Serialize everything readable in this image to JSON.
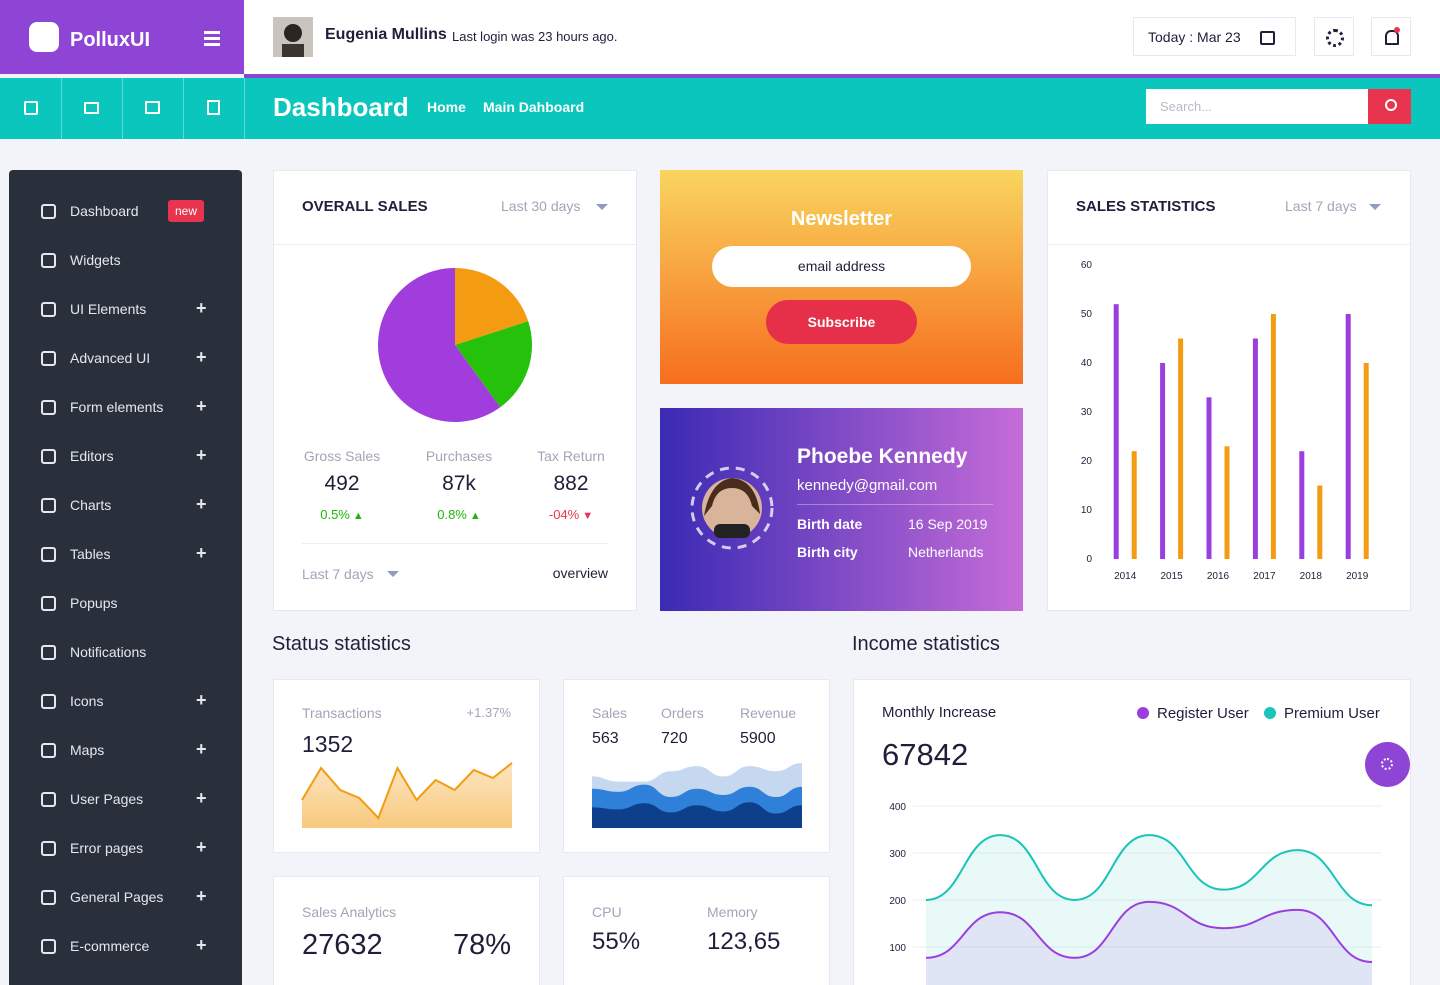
{
  "brand": "PolluxUI",
  "user": {
    "name": "Eugenia Mullins",
    "status": "Last login was 23 hours ago."
  },
  "date": "Today : Mar 23",
  "page_title": "Dashboard",
  "breadcrumb": [
    "Home",
    "Main Dahboard"
  ],
  "search_placeholder": "Search...",
  "sidebar": [
    {
      "label": "Dashboard",
      "badge": "new"
    },
    {
      "label": "Widgets"
    },
    {
      "label": "UI Elements",
      "expandable": true
    },
    {
      "label": "Advanced UI",
      "expandable": true
    },
    {
      "label": "Form elements",
      "expandable": true
    },
    {
      "label": "Editors",
      "expandable": true
    },
    {
      "label": "Charts",
      "expandable": true
    },
    {
      "label": "Tables",
      "expandable": true
    },
    {
      "label": "Popups"
    },
    {
      "label": "Notifications"
    },
    {
      "label": "Icons",
      "expandable": true
    },
    {
      "label": "Maps",
      "expandable": true
    },
    {
      "label": "User Pages",
      "expandable": true
    },
    {
      "label": "Error pages",
      "expandable": true
    },
    {
      "label": "General Pages",
      "expandable": true
    },
    {
      "label": "E-commerce",
      "expandable": true
    }
  ],
  "overall_sales": {
    "title": "OVERALL SALES",
    "period": "Last 30 days",
    "stats": [
      {
        "label": "Gross Sales",
        "value": 492,
        "change": "0.5%",
        "trend": "up"
      },
      {
        "label": "Purchases",
        "value": "87k",
        "change": "0.8%",
        "trend": "up"
      },
      {
        "label": "Tax Return",
        "value": 882,
        "change": "-04%",
        "trend": "down"
      }
    ],
    "footer_period": "Last 7 days",
    "footer_link": "overview"
  },
  "newsletter": {
    "title": "Newsletter",
    "placeholder": "email address",
    "button": "Subscribe"
  },
  "profile": {
    "name": "Phoebe Kennedy",
    "email": "kennedy@gmail.com",
    "details": [
      {
        "label": "Birth date",
        "value": "16 Sep 2019"
      },
      {
        "label": "Birth city",
        "value": "Netherlands"
      }
    ]
  },
  "sales_statistics": {
    "title": "SALES STATISTICS",
    "period": "Last 7 days"
  },
  "status_title": "Status statistics",
  "transactions": {
    "label": "Transactions",
    "change": "+1.37%",
    "value": 1352
  },
  "orders_card": [
    {
      "label": "Sales",
      "value": 563
    },
    {
      "label": "Orders",
      "value": 720
    },
    {
      "label": "Revenue",
      "value": 5900
    }
  ],
  "sales_analytics": {
    "label": "Sales Analytics",
    "value": 27632,
    "percent": "78%"
  },
  "system": [
    {
      "label": "CPU",
      "value": "55%"
    },
    {
      "label": "Memory",
      "value": "123,65"
    }
  ],
  "income_title": "Income statistics",
  "income": {
    "label": "Monthly Increase",
    "value": 67842
  },
  "chart_data": [
    {
      "type": "pie",
      "values": [
        20,
        20,
        60
      ],
      "colors": [
        "#f39c12",
        "#26c10a",
        "#a03ddc"
      ]
    },
    {
      "type": "bar",
      "categories": [
        "2014",
        "2015",
        "2016",
        "2017",
        "2018",
        "2019"
      ],
      "series": [
        {
          "color": "#9b3ee0",
          "values": [
            52,
            40,
            33,
            45,
            22,
            50
          ]
        },
        {
          "color": "#f39c12",
          "values": [
            22,
            45,
            23,
            50,
            15,
            40
          ]
        }
      ],
      "ylim": [
        0,
        60
      ],
      "yticks": [
        0,
        10,
        20,
        30,
        40,
        50,
        60
      ]
    },
    {
      "type": "area",
      "values": [
        28,
        60,
        38,
        30,
        10,
        60,
        28,
        48,
        38,
        58,
        50,
        65
      ],
      "color": "#f39c12"
    },
    {
      "type": "area",
      "series": [
        {
          "color": "#c6d8ef",
          "values": [
            50,
            45,
            45,
            55,
            60,
            50,
            60,
            55,
            63
          ]
        },
        {
          "color": "#2f80d9",
          "values": [
            38,
            35,
            42,
            30,
            38,
            32,
            40,
            30,
            40
          ]
        },
        {
          "color": "#0d3f8a",
          "values": [
            20,
            18,
            24,
            15,
            22,
            16,
            25,
            14,
            22
          ]
        }
      ]
    },
    {
      "type": "line",
      "categories": [
        null,
        null,
        null,
        null,
        null,
        null,
        null
      ],
      "series": [
        {
          "name": "Register User",
          "color": "#9b3ee0",
          "values": [
            77,
            174,
            77,
            196,
            140,
            179,
            68
          ]
        },
        {
          "name": "Premium User",
          "color": "#19c4b8",
          "values": [
            200,
            338,
            200,
            338,
            222,
            306,
            189
          ]
        }
      ],
      "ylim": [
        0,
        400
      ],
      "yticks": [
        100,
        200,
        300,
        400
      ],
      "grid": true
    }
  ]
}
